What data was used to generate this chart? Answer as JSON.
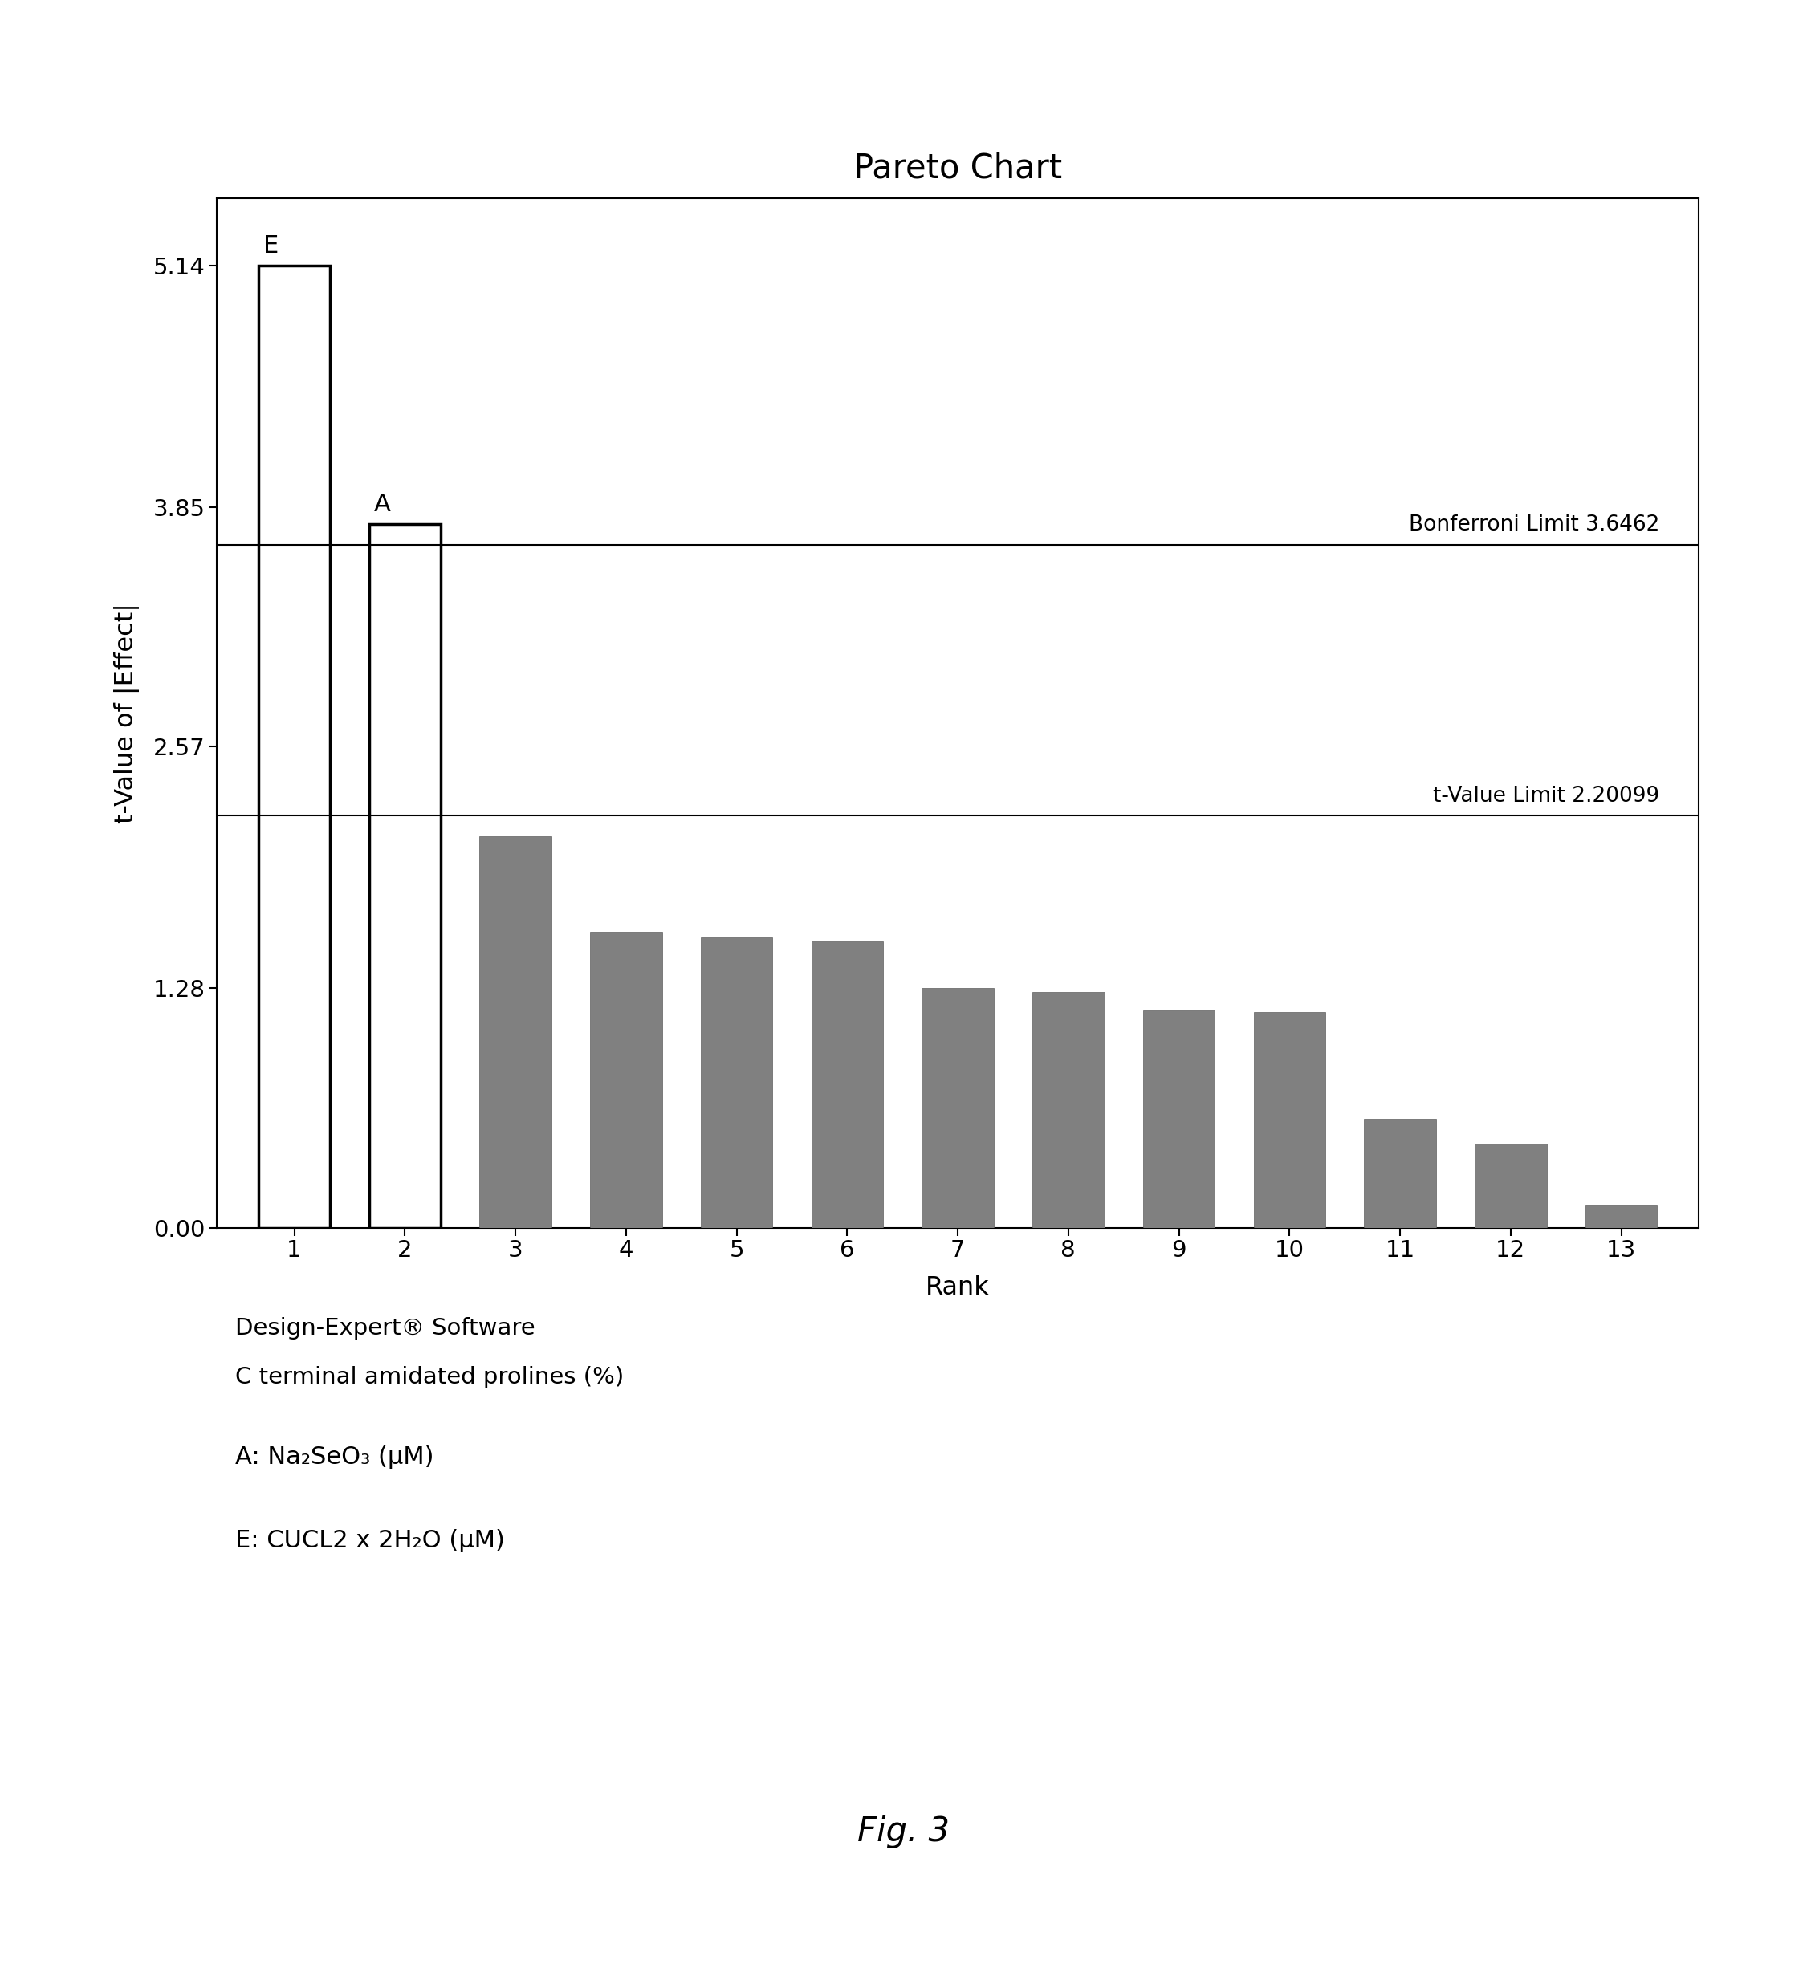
{
  "title": "Pareto Chart",
  "xlabel": "Rank",
  "ylabel": "t-Value of |Effect|",
  "bar_values": [
    5.14,
    3.76,
    2.09,
    1.58,
    1.55,
    1.53,
    1.28,
    1.26,
    1.16,
    1.15,
    0.58,
    0.45,
    0.12
  ],
  "bar_labels": [
    "E",
    "A",
    "",
    "",
    "",
    "",
    "",
    "",
    "",
    "",
    "",
    "",
    ""
  ],
  "bar_colors": [
    "white",
    "white",
    "#808080",
    "#808080",
    "#808080",
    "#808080",
    "#808080",
    "#808080",
    "#808080",
    "#808080",
    "#808080",
    "#808080",
    "#808080"
  ],
  "bar_edge_colors": [
    "black",
    "black",
    "#606060",
    "#606060",
    "#606060",
    "#606060",
    "#606060",
    "#606060",
    "#606060",
    "#606060",
    "#606060",
    "#606060",
    "#606060"
  ],
  "bar_linewidths": [
    2.5,
    2.5,
    0.5,
    0.5,
    0.5,
    0.5,
    0.5,
    0.5,
    0.5,
    0.5,
    0.5,
    0.5,
    0.5
  ],
  "bonferroni_limit": 3.6462,
  "tvalue_limit": 2.20099,
  "yticks": [
    0.0,
    1.28,
    2.57,
    3.85,
    5.14
  ],
  "ylim": [
    0,
    5.5
  ],
  "xtick_labels": [
    "1",
    "2",
    "3",
    "4",
    "5",
    "6",
    "7",
    "8",
    "9",
    "10",
    "11",
    "12",
    "13"
  ],
  "annotation_line1": "Design-Expert® Software",
  "annotation_line2": "C terminal amidated prolines (%)",
  "legend_line1": "A: Na₂SeO₃ (μM)",
  "legend_line2": "E: CUCL2 x 2H₂O (μM)",
  "fig_label": "Fig. 3",
  "background_color": "#ffffff"
}
